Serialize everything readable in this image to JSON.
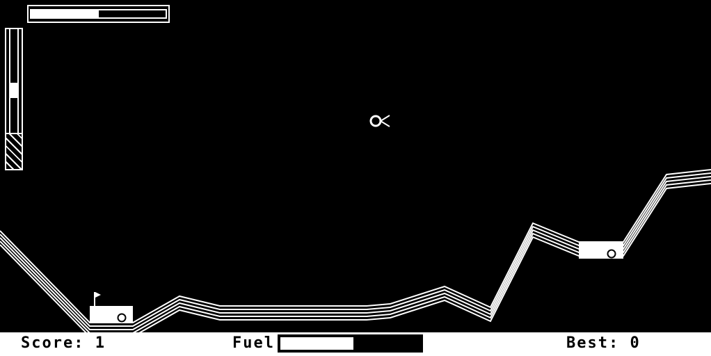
{
  "hud": {
    "top_gauge_level": 0.5,
    "side_gauge_level": 0.4
  },
  "status": {
    "score_label": "Score:",
    "score_value": "1",
    "fuel_label": "Fuel",
    "fuel_level": 0.52,
    "best_label": "Best:",
    "best_value": "0"
  },
  "icons": {
    "ship": "saucer-ship-icon",
    "flag": "flag-icon",
    "ball": "ball-icon"
  },
  "colors": {
    "background": "#000000",
    "foreground": "#ffffff"
  }
}
